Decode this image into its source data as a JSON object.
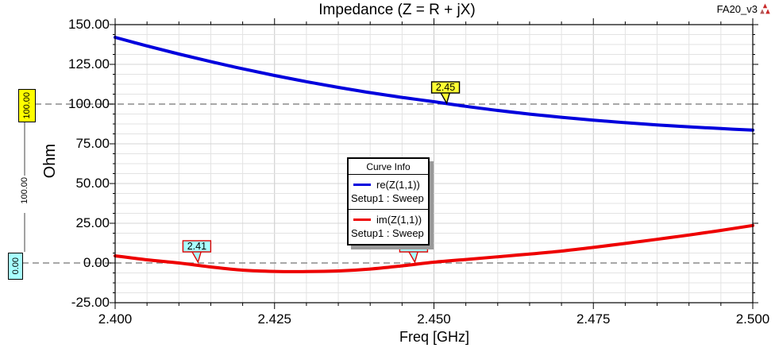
{
  "header": {
    "title": "Impedance (Z = R + jX)",
    "project": "FA20_v3",
    "logo": "ansoft-logo"
  },
  "axes": {
    "x": {
      "label": "Freq [GHz]",
      "tick_labels": [
        "2.400",
        "2.425",
        "2.450",
        "2.475",
        "2.500"
      ],
      "tick_values": [
        2.4,
        2.425,
        2.45,
        2.475,
        2.5
      ],
      "min": 2.4,
      "max": 2.5,
      "minor_step": 0.005
    },
    "y": {
      "label": "Ohm",
      "tick_labels": [
        "150.00",
        "125.00",
        "100.00",
        "75.00",
        "50.00",
        "25.00",
        "0.00",
        "-25.00"
      ],
      "tick_values": [
        150,
        125,
        100,
        75,
        50,
        25,
        0,
        -25
      ],
      "min": -25,
      "max": 150,
      "minor_step": 6.25
    }
  },
  "reference_lines": [
    {
      "value": 100,
      "label": "100.00",
      "fill": "#ffff00",
      "border": "#000000"
    },
    {
      "value": 0,
      "label": "0.00",
      "fill": "#a8ffff",
      "border": "#000000"
    }
  ],
  "dimension_label": "100.00",
  "legend": {
    "title": "Curve Info",
    "entries": [
      {
        "label": "re(Z(1,1))",
        "sub": "Setup1 : Sweep",
        "color": "#0000dd"
      },
      {
        "label": "im(Z(1,1))",
        "sub": "Setup1 : Sweep",
        "color": "#ee0000"
      }
    ]
  },
  "chart_data": {
    "type": "line",
    "title": "Impedance (Z = R + jX)",
    "xlabel": "Freq [GHz]",
    "ylabel": "Ohm",
    "xlim": [
      2.4,
      2.5
    ],
    "ylim": [
      -25,
      150
    ],
    "grid": "on",
    "legend_position": "center",
    "x": [
      2.4,
      2.405,
      2.41,
      2.415,
      2.42,
      2.425,
      2.43,
      2.435,
      2.44,
      2.445,
      2.45,
      2.455,
      2.46,
      2.465,
      2.47,
      2.475,
      2.48,
      2.485,
      2.49,
      2.495,
      2.5
    ],
    "series": [
      {
        "name": "re(Z(1,1))",
        "setup": "Setup1 : Sweep",
        "color": "#0000dd",
        "values": [
          142.0,
          136.6,
          131.5,
          126.7,
          122.2,
          118.0,
          114.1,
          110.5,
          107.2,
          104.2,
          101.5,
          98.6,
          96.0,
          93.7,
          91.7,
          89.9,
          88.3,
          86.9,
          85.7,
          84.6,
          83.6
        ]
      },
      {
        "name": "im(Z(1,1))",
        "setup": "Setup1 : Sweep",
        "color": "#ee0000",
        "values": [
          4.5,
          2.0,
          0.0,
          -2.5,
          -4.5,
          -5.3,
          -5.4,
          -5.0,
          -3.8,
          -1.8,
          0.5,
          2.2,
          3.9,
          5.6,
          7.5,
          9.8,
          12.3,
          14.9,
          17.6,
          20.5,
          23.6
        ]
      }
    ],
    "markers": [
      {
        "label": "2.45",
        "x": 2.452,
        "on_line": 100,
        "fill": "#ffff33",
        "border": "#000000"
      },
      {
        "label": "2.41",
        "x": 2.413,
        "on_line": 0,
        "fill": "#a8ffff",
        "border": "#dd0000"
      },
      {
        "label": "2.45",
        "x": 2.447,
        "on_line": 0,
        "fill": "#a8ffff",
        "border": "#dd0000"
      }
    ]
  }
}
